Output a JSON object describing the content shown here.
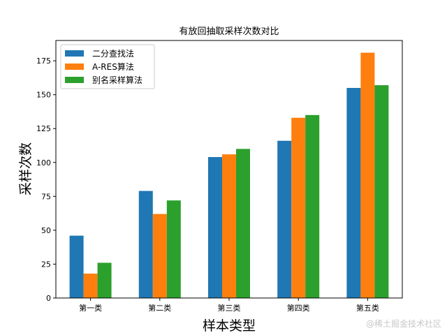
{
  "chart_data": {
    "type": "bar",
    "title": "有放回抽取采样次数对比",
    "xlabel": "样本类型",
    "ylabel": "采样次数",
    "categories": [
      "第一类",
      "第二类",
      "第三类",
      "第四类",
      "第五类"
    ],
    "series": [
      {
        "name": "二分查找法",
        "color": "#1f77b4",
        "values": [
          46,
          79,
          104,
          116,
          155
        ]
      },
      {
        "name": "A-RES算法",
        "color": "#ff7f0e",
        "values": [
          18,
          62,
          106,
          133,
          181
        ]
      },
      {
        "name": "别名采样算法",
        "color": "#2ca02c",
        "values": [
          26,
          72,
          110,
          135,
          157
        ]
      }
    ],
    "ylim": [
      0,
      190
    ],
    "yticks": [
      0,
      25,
      50,
      75,
      100,
      125,
      150,
      175
    ],
    "grid": false,
    "legend": "top-left"
  },
  "watermark": "@稀土掘金技术社区"
}
